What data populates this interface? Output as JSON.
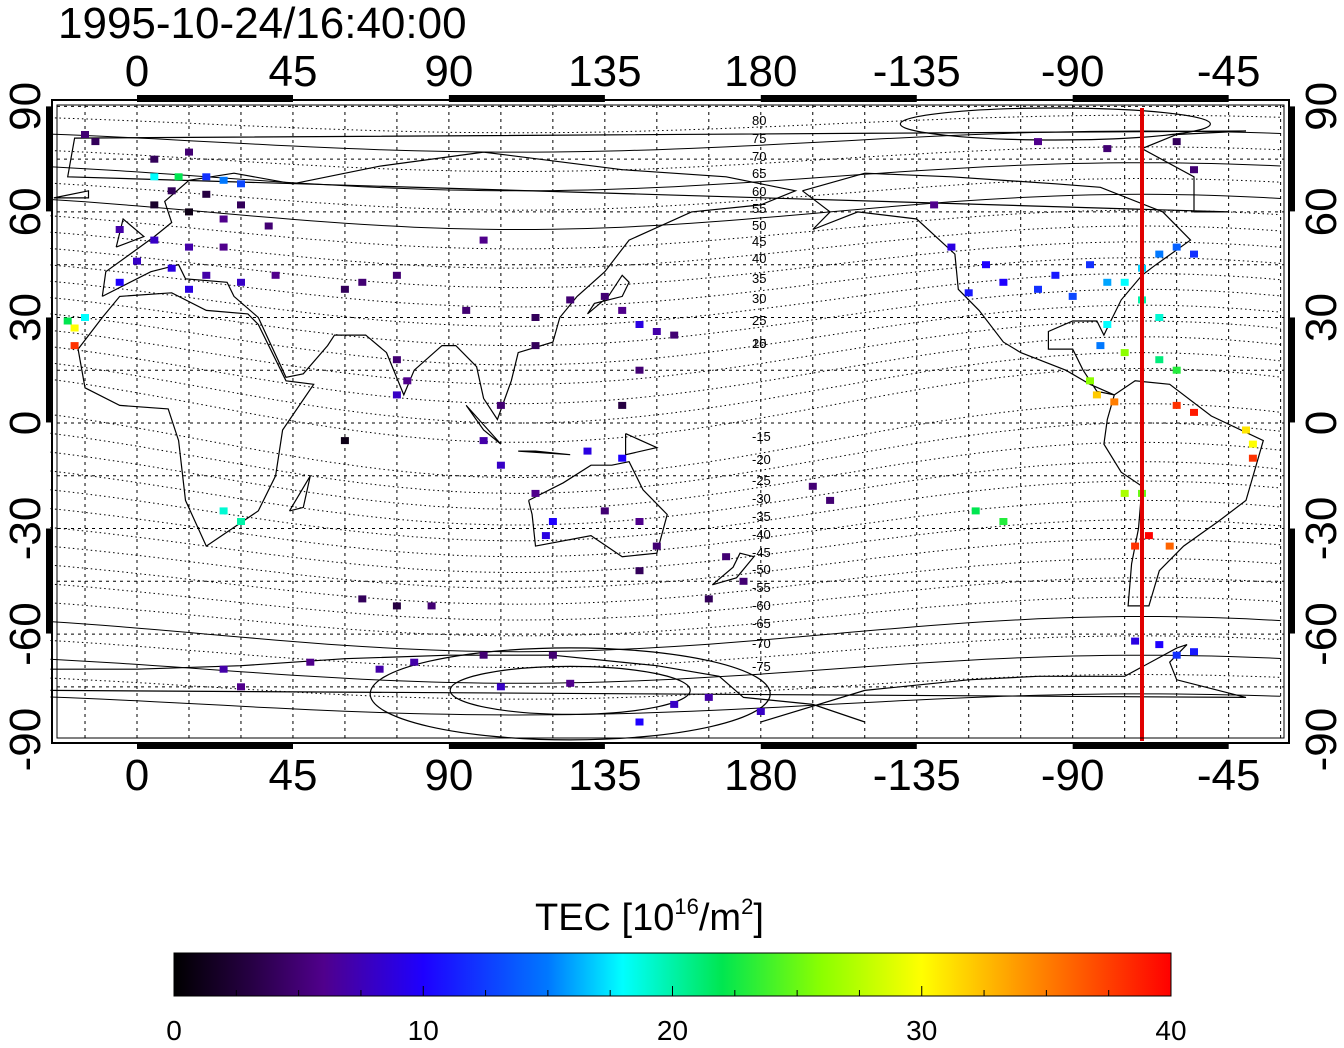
{
  "map": {
    "timestamp": "1995-10-24/16:40:00",
    "projection": "equirectangular",
    "lon_ticks": [
      "0",
      "45",
      "90",
      "135",
      "180",
      "-135",
      "-90",
      "-45"
    ],
    "lat_ticks": [
      "90",
      "60",
      "30",
      "0",
      "-30",
      "-60",
      "-90"
    ],
    "magnetic_contours_north": [
      "80",
      "75",
      "70",
      "65",
      "60",
      "55",
      "50",
      "45",
      "40",
      "35",
      "30",
      "25",
      "20",
      "15"
    ],
    "magnetic_contours_south": [
      "-15",
      "-20",
      "-25",
      "-30",
      "-35",
      "-40",
      "-45",
      "-50",
      "-55",
      "-60",
      "-65",
      "-70",
      "-75"
    ],
    "terminator_line": {
      "longitude": -70,
      "color": "#e00000"
    },
    "tec_observations": [
      {
        "lon": -15,
        "lat": 82,
        "tec": 5
      },
      {
        "lon": -12,
        "lat": 80,
        "tec": 4
      },
      {
        "lon": 5,
        "lat": 75,
        "tec": 4
      },
      {
        "lon": 15,
        "lat": 77,
        "tec": 5
      },
      {
        "lon": 5,
        "lat": 70,
        "tec": 18
      },
      {
        "lon": 12,
        "lat": 70,
        "tec": 22
      },
      {
        "lon": 20,
        "lat": 70,
        "tec": 12
      },
      {
        "lon": 25,
        "lat": 69,
        "tec": 15
      },
      {
        "lon": 30,
        "lat": 68,
        "tec": 13
      },
      {
        "lon": 10,
        "lat": 66,
        "tec": 4
      },
      {
        "lon": 20,
        "lat": 65,
        "tec": 3
      },
      {
        "lon": 30,
        "lat": 62,
        "tec": 4
      },
      {
        "lon": 5,
        "lat": 62,
        "tec": 2
      },
      {
        "lon": 15,
        "lat": 60,
        "tec": 1
      },
      {
        "lon": 25,
        "lat": 58,
        "tec": 6
      },
      {
        "lon": 38,
        "lat": 56,
        "tec": 5
      },
      {
        "lon": -5,
        "lat": 55,
        "tec": 7
      },
      {
        "lon": 5,
        "lat": 52,
        "tec": 8
      },
      {
        "lon": 15,
        "lat": 50,
        "tec": 7
      },
      {
        "lon": 25,
        "lat": 50,
        "tec": 6
      },
      {
        "lon": 0,
        "lat": 46,
        "tec": 8
      },
      {
        "lon": 10,
        "lat": 44,
        "tec": 9
      },
      {
        "lon": 20,
        "lat": 42,
        "tec": 7
      },
      {
        "lon": -5,
        "lat": 40,
        "tec": 10
      },
      {
        "lon": 15,
        "lat": 38,
        "tec": 9
      },
      {
        "lon": 30,
        "lat": 40,
        "tec": 8
      },
      {
        "lon": 40,
        "lat": 42,
        "tec": 6
      },
      {
        "lon": 65,
        "lat": 40,
        "tec": 5
      },
      {
        "lon": 75,
        "lat": 42,
        "tec": 5
      },
      {
        "lon": 60,
        "lat": 38,
        "tec": 4
      },
      {
        "lon": -20,
        "lat": 29,
        "tec": 22
      },
      {
        "lon": -18,
        "lat": 27,
        "tec": 30
      },
      {
        "lon": -15,
        "lat": 30,
        "tec": 18
      },
      {
        "lon": -18,
        "lat": 22,
        "tec": 38
      },
      {
        "lon": 100,
        "lat": 52,
        "tec": 6
      },
      {
        "lon": 95,
        "lat": 32,
        "tec": 5
      },
      {
        "lon": 115,
        "lat": 30,
        "tec": 4
      },
      {
        "lon": 125,
        "lat": 35,
        "tec": 5
      },
      {
        "lon": 135,
        "lat": 36,
        "tec": 5
      },
      {
        "lon": 140,
        "lat": 32,
        "tec": 6
      },
      {
        "lon": 145,
        "lat": 28,
        "tec": 9
      },
      {
        "lon": 150,
        "lat": 26,
        "tec": 7
      },
      {
        "lon": 155,
        "lat": 25,
        "tec": 5
      },
      {
        "lon": 115,
        "lat": 22,
        "tec": 4
      },
      {
        "lon": 75,
        "lat": 18,
        "tec": 5
      },
      {
        "lon": 78,
        "lat": 12,
        "tec": 6
      },
      {
        "lon": 75,
        "lat": 8,
        "tec": 8
      },
      {
        "lon": 145,
        "lat": 15,
        "tec": 5
      },
      {
        "lon": 140,
        "lat": 5,
        "tec": 3
      },
      {
        "lon": 105,
        "lat": 5,
        "tec": 5
      },
      {
        "lon": 100,
        "lat": -5,
        "tec": 7
      },
      {
        "lon": 105,
        "lat": -12,
        "tec": 8
      },
      {
        "lon": 60,
        "lat": -5,
        "tec": 1
      },
      {
        "lon": 130,
        "lat": -8,
        "tec": 9
      },
      {
        "lon": 140,
        "lat": -10,
        "tec": 10
      },
      {
        "lon": 115,
        "lat": -20,
        "tec": 6
      },
      {
        "lon": 120,
        "lat": -28,
        "tec": 10
      },
      {
        "lon": 118,
        "lat": -32,
        "tec": 9
      },
      {
        "lon": 135,
        "lat": -25,
        "tec": 5
      },
      {
        "lon": 145,
        "lat": -28,
        "tec": 6
      },
      {
        "lon": 150,
        "lat": -35,
        "tec": 5
      },
      {
        "lon": 145,
        "lat": -42,
        "tec": 4
      },
      {
        "lon": 170,
        "lat": -38,
        "tec": 5
      },
      {
        "lon": 175,
        "lat": -45,
        "tec": 5
      },
      {
        "lon": 165,
        "lat": -50,
        "tec": 4
      },
      {
        "lon": 25,
        "lat": -25,
        "tec": 19
      },
      {
        "lon": 30,
        "lat": -28,
        "tec": 20
      },
      {
        "lon": 65,
        "lat": -50,
        "tec": 4
      },
      {
        "lon": 75,
        "lat": -52,
        "tec": 3
      },
      {
        "lon": 85,
        "lat": -52,
        "tec": 5
      },
      {
        "lon": 195,
        "lat": -18,
        "tec": 5
      },
      {
        "lon": 200,
        "lat": -22,
        "tec": 5
      },
      {
        "lon": 25,
        "lat": -70,
        "tec": 7
      },
      {
        "lon": 30,
        "lat": -75,
        "tec": 6
      },
      {
        "lon": 50,
        "lat": -68,
        "tec": 6
      },
      {
        "lon": 70,
        "lat": -70,
        "tec": 7
      },
      {
        "lon": 80,
        "lat": -68,
        "tec": 7
      },
      {
        "lon": 100,
        "lat": -66,
        "tec": 5
      },
      {
        "lon": 120,
        "lat": -66,
        "tec": 5
      },
      {
        "lon": 105,
        "lat": -75,
        "tec": 8
      },
      {
        "lon": 125,
        "lat": -74,
        "tec": 6
      },
      {
        "lon": 155,
        "lat": -80,
        "tec": 8
      },
      {
        "lon": 165,
        "lat": -78,
        "tec": 7
      },
      {
        "lon": 145,
        "lat": -85,
        "tec": 10
      },
      {
        "lon": 180,
        "lat": -82,
        "tec": 8
      },
      {
        "lon": -130,
        "lat": 62,
        "tec": 6
      },
      {
        "lon": -125,
        "lat": 50,
        "tec": 9
      },
      {
        "lon": -115,
        "lat": 45,
        "tec": 10
      },
      {
        "lon": -110,
        "lat": 40,
        "tec": 10
      },
      {
        "lon": -120,
        "lat": 37,
        "tec": 11
      },
      {
        "lon": -100,
        "lat": 38,
        "tec": 12
      },
      {
        "lon": -95,
        "lat": 42,
        "tec": 11
      },
      {
        "lon": -90,
        "lat": 36,
        "tec": 13
      },
      {
        "lon": -85,
        "lat": 45,
        "tec": 12
      },
      {
        "lon": -80,
        "lat": 40,
        "tec": 16
      },
      {
        "lon": -75,
        "lat": 40,
        "tec": 18
      },
      {
        "lon": -70,
        "lat": 44,
        "tec": 17
      },
      {
        "lon": -65,
        "lat": 48,
        "tec": 15
      },
      {
        "lon": -60,
        "lat": 50,
        "tec": 14
      },
      {
        "lon": -55,
        "lat": 48,
        "tec": 12
      },
      {
        "lon": -70,
        "lat": 35,
        "tec": 20
      },
      {
        "lon": -65,
        "lat": 30,
        "tec": 19
      },
      {
        "lon": -80,
        "lat": 28,
        "tec": 18
      },
      {
        "lon": -82,
        "lat": 22,
        "tec": 15
      },
      {
        "lon": -75,
        "lat": 20,
        "tec": 26
      },
      {
        "lon": -65,
        "lat": 18,
        "tec": 21
      },
      {
        "lon": -60,
        "lat": 15,
        "tec": 23
      },
      {
        "lon": -85,
        "lat": 12,
        "tec": 26
      },
      {
        "lon": -83,
        "lat": 8,
        "tec": 32
      },
      {
        "lon": -78,
        "lat": 6,
        "tec": 35
      },
      {
        "lon": -60,
        "lat": 5,
        "tec": 38
      },
      {
        "lon": -55,
        "lat": 3,
        "tec": 39
      },
      {
        "lon": -40,
        "lat": -2,
        "tec": 31
      },
      {
        "lon": -38,
        "lat": -6,
        "tec": 30
      },
      {
        "lon": -38,
        "lat": -10,
        "tec": 38
      },
      {
        "lon": -75,
        "lat": -20,
        "tec": 27
      },
      {
        "lon": -70,
        "lat": -20,
        "tec": 25
      },
      {
        "lon": -68,
        "lat": -32,
        "tec": 40
      },
      {
        "lon": -72,
        "lat": -35,
        "tec": 38
      },
      {
        "lon": -62,
        "lat": -35,
        "tec": 36
      },
      {
        "lon": -118,
        "lat": -25,
        "tec": 22
      },
      {
        "lon": -110,
        "lat": -28,
        "tec": 23
      },
      {
        "lon": -100,
        "lat": 80,
        "tec": 6
      },
      {
        "lon": -80,
        "lat": 78,
        "tec": 5
      },
      {
        "lon": -60,
        "lat": 80,
        "tec": 4
      },
      {
        "lon": -55,
        "lat": 72,
        "tec": 5
      },
      {
        "lon": -65,
        "lat": -63,
        "tec": 10
      },
      {
        "lon": -60,
        "lat": -66,
        "tec": 12
      },
      {
        "lon": -55,
        "lat": -65,
        "tec": 11
      },
      {
        "lon": -72,
        "lat": -62,
        "tec": 9
      }
    ]
  },
  "colorbar": {
    "title": "TEC  [10",
    "title_sup": "16",
    "title_unit": "/m",
    "title_sup2": "2",
    "title_end": "]",
    "ticks": [
      "0",
      "10",
      "20",
      "30",
      "40"
    ],
    "min": 0,
    "max": 40
  }
}
